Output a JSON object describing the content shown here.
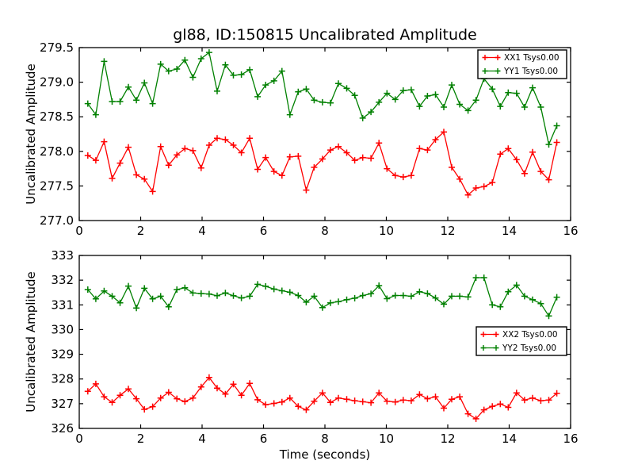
{
  "figure": {
    "background": "#ffffff",
    "axis_color": "#000000"
  },
  "chart_data": [
    {
      "type": "line",
      "title": "gl88, ID:150815 Uncalibrated Amplitude",
      "ylabel": "Uncalibrated Amplitude",
      "xlabel": "",
      "xlim": [
        0,
        16
      ],
      "ylim": [
        277.0,
        279.5
      ],
      "grid": false,
      "xticks": [
        0,
        2,
        4,
        6,
        8,
        10,
        12,
        14,
        16
      ],
      "xtick_labels": [
        "0",
        "2",
        "4",
        "6",
        "8",
        "10",
        "12",
        "14",
        "16"
      ],
      "yticks": [
        277.0,
        277.5,
        278.0,
        278.5,
        279.0,
        279.5
      ],
      "ytick_labels": [
        "277.0",
        "277.5",
        "278.0",
        "278.5",
        "279.0",
        "279.5"
      ],
      "legend": {
        "position": "upper right",
        "entries": [
          "XX1 Tsys0.00",
          "YY1 Tsys0.00"
        ]
      },
      "x": [
        0.28,
        0.54,
        0.81,
        1.07,
        1.33,
        1.6,
        1.86,
        2.12,
        2.39,
        2.65,
        2.91,
        3.18,
        3.44,
        3.7,
        3.97,
        4.23,
        4.49,
        4.76,
        5.02,
        5.28,
        5.55,
        5.81,
        6.07,
        6.34,
        6.6,
        6.86,
        7.13,
        7.39,
        7.65,
        7.92,
        8.18,
        8.44,
        8.71,
        8.97,
        9.23,
        9.5,
        9.76,
        10.02,
        10.29,
        10.55,
        10.81,
        11.08,
        11.34,
        11.6,
        11.87,
        12.13,
        12.39,
        12.66,
        12.92,
        13.18,
        13.45,
        13.71,
        13.97,
        14.24,
        14.5,
        14.76,
        15.03,
        15.29,
        15.55
      ],
      "series": [
        {
          "name": "XX1 Tsys0.00",
          "color": "#ff0000",
          "marker": "plus",
          "values": [
            277.94,
            277.87,
            278.14,
            277.61,
            277.83,
            278.06,
            277.66,
            277.6,
            277.42,
            278.07,
            277.8,
            277.95,
            278.04,
            278.01,
            277.76,
            278.09,
            278.19,
            278.17,
            278.09,
            277.98,
            278.19,
            277.74,
            277.91,
            277.71,
            277.65,
            277.92,
            277.93,
            277.44,
            277.77,
            277.89,
            278.02,
            278.07,
            277.98,
            277.87,
            277.91,
            277.9,
            278.12,
            277.75,
            277.65,
            277.63,
            277.65,
            278.04,
            278.02,
            278.17,
            278.28,
            277.77,
            277.6,
            277.37,
            277.47,
            277.49,
            277.55,
            277.96,
            278.04,
            277.88,
            277.68,
            277.99,
            277.71,
            277.59,
            278.13
          ]
        },
        {
          "name": "YY1 Tsys0.00",
          "color": "#008000",
          "marker": "plus",
          "values": [
            278.69,
            278.53,
            279.3,
            278.72,
            278.72,
            278.93,
            278.74,
            278.99,
            278.69,
            279.26,
            279.16,
            279.19,
            279.32,
            279.07,
            279.34,
            279.43,
            278.87,
            279.25,
            279.1,
            279.11,
            279.18,
            278.79,
            278.96,
            279.02,
            279.16,
            278.53,
            278.86,
            278.9,
            278.74,
            278.71,
            278.7,
            278.98,
            278.91,
            278.81,
            278.48,
            278.57,
            278.71,
            278.84,
            278.75,
            278.88,
            278.89,
            278.65,
            278.8,
            278.82,
            278.64,
            278.96,
            278.68,
            278.59,
            278.74,
            279.05,
            278.9,
            278.65,
            278.85,
            278.84,
            278.64,
            278.92,
            278.64,
            278.1,
            278.37
          ]
        }
      ]
    },
    {
      "type": "line",
      "title": "",
      "ylabel": "Uncalibrated Amplitude",
      "xlabel": "Time (seconds)",
      "xlim": [
        0,
        16
      ],
      "ylim": [
        326,
        333
      ],
      "grid": false,
      "xticks": [
        0,
        2,
        4,
        6,
        8,
        10,
        12,
        14,
        16
      ],
      "xtick_labels": [
        "0",
        "2",
        "4",
        "6",
        "8",
        "10",
        "12",
        "14",
        "16"
      ],
      "yticks": [
        326,
        327,
        328,
        329,
        330,
        331,
        332,
        333
      ],
      "ytick_labels": [
        "326",
        "327",
        "328",
        "329",
        "330",
        "331",
        "332",
        "333"
      ],
      "legend": {
        "position": "center right",
        "entries": [
          "XX2 Tsys0.00",
          "YY2 Tsys0.00"
        ]
      },
      "x": [
        0.28,
        0.54,
        0.81,
        1.07,
        1.33,
        1.6,
        1.86,
        2.12,
        2.39,
        2.65,
        2.91,
        3.18,
        3.44,
        3.7,
        3.97,
        4.23,
        4.49,
        4.76,
        5.02,
        5.28,
        5.55,
        5.81,
        6.07,
        6.34,
        6.6,
        6.86,
        7.13,
        7.39,
        7.65,
        7.92,
        8.18,
        8.44,
        8.71,
        8.97,
        9.23,
        9.5,
        9.76,
        10.02,
        10.29,
        10.55,
        10.81,
        11.08,
        11.34,
        11.6,
        11.87,
        12.13,
        12.39,
        12.66,
        12.92,
        13.18,
        13.45,
        13.71,
        13.97,
        14.24,
        14.5,
        14.76,
        15.03,
        15.29,
        15.55
      ],
      "series": [
        {
          "name": "XX2 Tsys0.00",
          "color": "#ff0000",
          "marker": "plus",
          "values": [
            327.5,
            327.8,
            327.28,
            327.05,
            327.34,
            327.6,
            327.2,
            326.77,
            326.88,
            327.23,
            327.46,
            327.2,
            327.09,
            327.23,
            327.68,
            328.06,
            327.63,
            327.39,
            327.79,
            327.34,
            327.82,
            327.16,
            326.96,
            327.01,
            327.07,
            327.23,
            326.89,
            326.75,
            327.1,
            327.44,
            327.05,
            327.23,
            327.18,
            327.12,
            327.08,
            327.04,
            327.44,
            327.1,
            327.07,
            327.15,
            327.12,
            327.37,
            327.2,
            327.28,
            326.82,
            327.18,
            327.28,
            326.59,
            326.39,
            326.75,
            326.89,
            326.99,
            326.85,
            327.44,
            327.15,
            327.23,
            327.12,
            327.15,
            327.42
          ]
        },
        {
          "name": "YY2 Tsys0.00",
          "color": "#008000",
          "marker": "plus",
          "values": [
            331.62,
            331.24,
            331.56,
            331.35,
            331.08,
            331.76,
            330.87,
            331.67,
            331.24,
            331.35,
            330.92,
            331.62,
            331.69,
            331.48,
            331.46,
            331.44,
            331.37,
            331.48,
            331.37,
            331.28,
            331.35,
            331.83,
            331.75,
            331.64,
            331.57,
            331.51,
            331.38,
            331.11,
            331.35,
            330.89,
            331.08,
            331.13,
            331.21,
            331.27,
            331.38,
            331.45,
            331.78,
            331.25,
            331.38,
            331.38,
            331.35,
            331.53,
            331.46,
            331.28,
            331.03,
            331.35,
            331.35,
            331.32,
            332.1,
            332.1,
            331.0,
            330.92,
            331.53,
            331.8,
            331.35,
            331.21,
            331.05,
            330.55,
            331.31
          ]
        }
      ]
    }
  ]
}
